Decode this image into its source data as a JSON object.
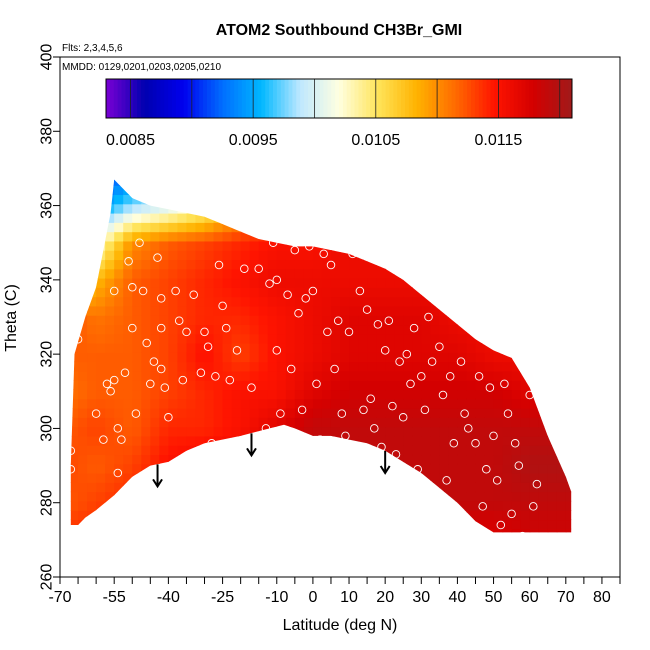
{
  "chart_data": {
    "type": "heatmap",
    "title": "ATOM2 Southbound CH3Br_GMI",
    "flights_label": "Flts: 2,3,4,5,6",
    "dates_label": "MMDD: 0129,0201,0203,0205,0210",
    "xlabel": "Latitude (deg N)",
    "ylabel": "Theta (C)",
    "xlim": [
      -70,
      85
    ],
    "ylim": [
      260,
      400
    ],
    "x_ticks_major": [
      -70,
      -55,
      -40,
      -25,
      -10,
      0,
      10,
      20,
      30,
      40,
      50,
      60,
      70,
      80
    ],
    "x_ticks_minor": [
      -65,
      -60,
      -50,
      -45,
      -35,
      -30,
      -20,
      -15,
      -5,
      5,
      15,
      25,
      35,
      45,
      55,
      65,
      75,
      85
    ],
    "y_ticks": [
      260,
      280,
      300,
      320,
      340,
      360,
      380,
      400
    ],
    "colorbar": {
      "min": 0.0083,
      "max": 0.0121,
      "tick_values": [
        0.0085,
        0.0095,
        0.0105,
        0.0115
      ],
      "tick_labels": [
        "0.0085",
        "0.0095",
        "0.0105",
        "0.0115"
      ],
      "colors": [
        "#7a00d4",
        "#0000b0",
        "#0000ee",
        "#006eff",
        "#00b8ff",
        "#bfe8ff",
        "#ffffe0",
        "#ffe45a",
        "#ffb300",
        "#ff6a00",
        "#ff1400",
        "#d40000",
        "#a01a1a"
      ]
    },
    "upper_boundary": [
      [
        -67,
        290
      ],
      [
        -66,
        320
      ],
      [
        -63,
        330
      ],
      [
        -60,
        338
      ],
      [
        -58,
        348
      ],
      [
        -56,
        358
      ],
      [
        -55,
        367
      ],
      [
        -50,
        362
      ],
      [
        -45,
        360
      ],
      [
        -40,
        359
      ],
      [
        -35,
        358
      ],
      [
        -30,
        357
      ],
      [
        -25,
        355
      ],
      [
        -20,
        353
      ],
      [
        -15,
        351
      ],
      [
        -10,
        350
      ],
      [
        -5,
        349
      ],
      [
        0,
        349
      ],
      [
        5,
        348
      ],
      [
        10,
        347
      ],
      [
        15,
        345
      ],
      [
        20,
        343
      ],
      [
        25,
        340
      ],
      [
        30,
        336
      ],
      [
        35,
        332
      ],
      [
        40,
        328
      ],
      [
        45,
        324
      ],
      [
        50,
        321
      ],
      [
        55,
        319
      ],
      [
        60,
        311
      ],
      [
        65,
        298
      ],
      [
        70,
        287
      ],
      [
        71.5,
        283
      ]
    ],
    "lower_boundary": [
      [
        71.5,
        272
      ],
      [
        65,
        272
      ],
      [
        60,
        272
      ],
      [
        55,
        272
      ],
      [
        50,
        272
      ],
      [
        45,
        275
      ],
      [
        40,
        280
      ],
      [
        35,
        284
      ],
      [
        30,
        288
      ],
      [
        25,
        291
      ],
      [
        20,
        294
      ],
      [
        15,
        296
      ],
      [
        10,
        297
      ],
      [
        5,
        298
      ],
      [
        0,
        298
      ],
      [
        -5,
        300
      ],
      [
        -8,
        301
      ],
      [
        -12,
        300
      ],
      [
        -20,
        298
      ],
      [
        -30,
        296
      ],
      [
        -35,
        294
      ],
      [
        -40,
        291
      ],
      [
        -45,
        290
      ],
      [
        -50,
        287
      ],
      [
        -55,
        282
      ],
      [
        -60,
        278
      ],
      [
        -63,
        276
      ],
      [
        -65,
        274
      ],
      [
        -67,
        274
      ]
    ],
    "field_grid": {
      "lats": [
        -70,
        -60,
        -50,
        -40,
        -30,
        -20,
        -10,
        0,
        10,
        20,
        30,
        40,
        50,
        60,
        70
      ],
      "thetas": [
        270,
        280,
        290,
        300,
        310,
        320,
        330,
        340,
        350,
        360,
        370
      ],
      "values": [
        [
          0.0114,
          0.0114,
          0.0115,
          0.0116,
          0.0116,
          0.0116,
          0.0117,
          0.0117,
          0.0117,
          0.0117,
          0.0117,
          0.0117,
          0.0117,
          0.0118,
          0.0118
        ],
        [
          0.0112,
          0.0113,
          0.0114,
          0.0115,
          0.0116,
          0.0116,
          0.0117,
          0.0117,
          0.0117,
          0.0118,
          0.0119,
          0.0119,
          0.0119,
          0.0119,
          0.0119
        ],
        [
          0.0113,
          0.0112,
          0.0113,
          0.0115,
          0.0116,
          0.0117,
          0.0118,
          0.0118,
          0.0119,
          0.0119,
          0.0119,
          0.0119,
          0.0119,
          0.012,
          0.012
        ],
        [
          0.0112,
          0.0113,
          0.0112,
          0.0114,
          0.0114,
          0.0115,
          0.0117,
          0.0119,
          0.0119,
          0.0119,
          0.0119,
          0.0119,
          0.0119,
          0.0119,
          0.0119
        ],
        [
          0.0111,
          0.0112,
          0.0112,
          0.0113,
          0.0114,
          0.0115,
          0.0115,
          0.0117,
          0.0118,
          0.0118,
          0.0118,
          0.0118,
          0.0118,
          0.0117,
          0.0117
        ],
        [
          0.0112,
          0.0112,
          0.0112,
          0.0113,
          0.0115,
          0.0113,
          0.0115,
          0.0116,
          0.0117,
          0.0117,
          0.0117,
          0.0117,
          0.0116,
          0.0116,
          0.0116
        ],
        [
          0.0113,
          0.0111,
          0.0112,
          0.0113,
          0.0114,
          0.0114,
          0.0115,
          0.0116,
          0.0117,
          0.0117,
          0.0117,
          0.0116,
          0.0116,
          0.0116,
          0.0116
        ],
        [
          0.0104,
          0.0108,
          0.0112,
          0.0113,
          0.0114,
          0.0115,
          0.0116,
          0.0116,
          0.0116,
          0.0116,
          0.0116,
          0.0116,
          0.0116,
          0.0116,
          0.0116
        ],
        [
          0.0097,
          0.0102,
          0.011,
          0.0112,
          0.0113,
          0.0114,
          0.0115,
          0.0115,
          0.0116,
          0.0116,
          0.0116,
          0.0116,
          0.0116,
          0.0116,
          0.0116
        ],
        [
          0.0091,
          0.0094,
          0.0098,
          0.01,
          0.0103,
          0.0108,
          0.0111,
          0.0112,
          0.0113,
          0.0113,
          0.0113,
          0.0113,
          0.0113,
          0.0113,
          0.0113
        ],
        [
          0.0088,
          0.0089,
          0.0092,
          0.0096,
          0.01,
          0.0104,
          0.0108,
          0.011,
          0.011,
          0.011,
          0.011,
          0.011,
          0.011,
          0.011,
          0.011
        ]
      ]
    },
    "observation_points": [
      [
        -67,
        289
      ],
      [
        -67,
        294
      ],
      [
        -65,
        324
      ],
      [
        -60,
        304
      ],
      [
        -58,
        297
      ],
      [
        -57,
        312
      ],
      [
        -56,
        310
      ],
      [
        -55,
        337
      ],
      [
        -55,
        313
      ],
      [
        -54,
        300
      ],
      [
        -54,
        288
      ],
      [
        -53,
        297
      ],
      [
        -52,
        315
      ],
      [
        -51,
        345
      ],
      [
        -50,
        338
      ],
      [
        -50,
        327
      ],
      [
        -49,
        304
      ],
      [
        -48,
        350
      ],
      [
        -47,
        337
      ],
      [
        -46,
        323
      ],
      [
        -45,
        312
      ],
      [
        -44,
        318
      ],
      [
        -43,
        346
      ],
      [
        -42,
        335
      ],
      [
        -42,
        327
      ],
      [
        -42,
        316
      ],
      [
        -41,
        311
      ],
      [
        -40,
        303
      ],
      [
        -38,
        337
      ],
      [
        -37,
        329
      ],
      [
        -36,
        313
      ],
      [
        -35,
        326
      ],
      [
        -33,
        292
      ],
      [
        -33,
        336
      ],
      [
        -31,
        315
      ],
      [
        -30,
        326
      ],
      [
        -29,
        322
      ],
      [
        -28,
        296
      ],
      [
        -27,
        314
      ],
      [
        -26,
        344
      ],
      [
        -25,
        333
      ],
      [
        -24,
        327
      ],
      [
        -23,
        313
      ],
      [
        -21,
        321
      ],
      [
        -19,
        343
      ],
      [
        -17,
        311
      ],
      [
        -15,
        343
      ],
      [
        -13,
        300
      ],
      [
        -12,
        339
      ],
      [
        -11,
        350
      ],
      [
        -10,
        340
      ],
      [
        -10,
        321
      ],
      [
        -9,
        304
      ],
      [
        -9,
        296
      ],
      [
        -7,
        336
      ],
      [
        -6,
        316
      ],
      [
        -5,
        348
      ],
      [
        -4,
        331
      ],
      [
        -3,
        305
      ],
      [
        -2,
        335
      ],
      [
        -1,
        349
      ],
      [
        0,
        337
      ],
      [
        1,
        312
      ],
      [
        2,
        297
      ],
      [
        3,
        347
      ],
      [
        4,
        326
      ],
      [
        5,
        344
      ],
      [
        6,
        316
      ],
      [
        7,
        329
      ],
      [
        8,
        304
      ],
      [
        9,
        298
      ],
      [
        10,
        326
      ],
      [
        11,
        347
      ],
      [
        12,
        349
      ],
      [
        13,
        337
      ],
      [
        14,
        305
      ],
      [
        15,
        332
      ],
      [
        16,
        308
      ],
      [
        17,
        300
      ],
      [
        18,
        328
      ],
      [
        19,
        295
      ],
      [
        20,
        321
      ],
      [
        21,
        329
      ],
      [
        22,
        306
      ],
      [
        23,
        293
      ],
      [
        24,
        318
      ],
      [
        25,
        303
      ],
      [
        26,
        320
      ],
      [
        27,
        312
      ],
      [
        28,
        327
      ],
      [
        29,
        289
      ],
      [
        30,
        314
      ],
      [
        31,
        305
      ],
      [
        32,
        330
      ],
      [
        33,
        318
      ],
      [
        35,
        322
      ],
      [
        36,
        309
      ],
      [
        37,
        286
      ],
      [
        38,
        314
      ],
      [
        39,
        296
      ],
      [
        41,
        318
      ],
      [
        42,
        304
      ],
      [
        43,
        300
      ],
      [
        45,
        296
      ],
      [
        46,
        314
      ],
      [
        47,
        279
      ],
      [
        48,
        289
      ],
      [
        49,
        311
      ],
      [
        50,
        298
      ],
      [
        51,
        286
      ],
      [
        52,
        274
      ],
      [
        53,
        312
      ],
      [
        54,
        304
      ],
      [
        55,
        277
      ],
      [
        56,
        296
      ],
      [
        57,
        290
      ],
      [
        58,
        271
      ],
      [
        60,
        309
      ],
      [
        61,
        279
      ],
      [
        62,
        285
      ]
    ],
    "arrows_at_latitude": [
      -43,
      -17,
      20
    ]
  }
}
